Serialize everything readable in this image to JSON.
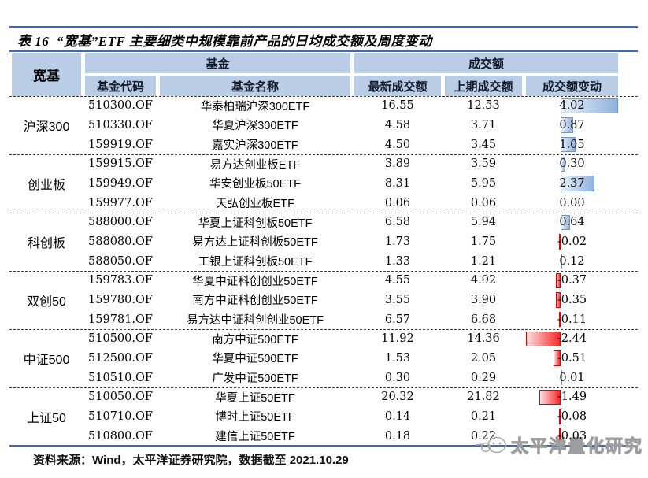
{
  "title": "表 16  “宽基”ETF 主要细类中规模靠前产品的日均成交额及周度变动",
  "table": {
    "category_header": "宽基",
    "group_headers": {
      "fund": "基金",
      "turnover": "成交额"
    },
    "columns": {
      "code": "基金代码",
      "name": "基金名称",
      "latest": "最新成交额",
      "prev": "上期成交额",
      "change": "成交额变动"
    },
    "bar_axis": {
      "min": -2.44,
      "max": 4.02
    },
    "groups": [
      {
        "category": "沪深300",
        "rows": [
          {
            "code": "510300.OF",
            "name": "华泰柏瑞沪深300ETF",
            "latest": "16.55",
            "prev": "12.53",
            "change": "4.02"
          },
          {
            "code": "510330.OF",
            "name": "华夏沪深300ETF",
            "latest": "4.58",
            "prev": "3.71",
            "change": "0.87"
          },
          {
            "code": "159919.OF",
            "name": "嘉实沪深300ETF",
            "latest": "4.50",
            "prev": "3.45",
            "change": "1.05"
          }
        ]
      },
      {
        "category": "创业板",
        "rows": [
          {
            "code": "159915.OF",
            "name": "易方达创业板ETF",
            "latest": "3.89",
            "prev": "3.59",
            "change": "0.30"
          },
          {
            "code": "159949.OF",
            "name": "华安创业板50ETF",
            "latest": "8.31",
            "prev": "5.95",
            "change": "2.37"
          },
          {
            "code": "159977.OF",
            "name": "天弘创业板ETF",
            "latest": "0.06",
            "prev": "0.06",
            "change": "0.00"
          }
        ]
      },
      {
        "category": "科创板",
        "rows": [
          {
            "code": "588000.OF",
            "name": "华夏上证科创板50ETF",
            "latest": "6.58",
            "prev": "5.94",
            "change": "0.64"
          },
          {
            "code": "588080.OF",
            "name": "易方达上证科创板50ETF",
            "latest": "1.73",
            "prev": "1.75",
            "change": "-0.02"
          },
          {
            "code": "588050.OF",
            "name": "工银上证科创板50ETF",
            "latest": "1.33",
            "prev": "1.21",
            "change": "0.12"
          }
        ]
      },
      {
        "category": "双创50",
        "rows": [
          {
            "code": "159783.OF",
            "name": "华夏中证科创创业50ETF",
            "latest": "4.55",
            "prev": "4.92",
            "change": "-0.37"
          },
          {
            "code": "159780.OF",
            "name": "南方中证科创创业50ETF",
            "latest": "3.55",
            "prev": "3.90",
            "change": "-0.35"
          },
          {
            "code": "159781.OF",
            "name": "易方达中证科创创业50ETF",
            "latest": "6.57",
            "prev": "6.68",
            "change": "-0.11"
          }
        ]
      },
      {
        "category": "中证500",
        "rows": [
          {
            "code": "510500.OF",
            "name": "南方中证500ETF",
            "latest": "11.92",
            "prev": "14.36",
            "change": "-2.44"
          },
          {
            "code": "512500.OF",
            "name": "华夏中证500ETF",
            "latest": "1.53",
            "prev": "2.05",
            "change": "-0.51"
          },
          {
            "code": "510510.OF",
            "name": "广发中证500ETF",
            "latest": "0.30",
            "prev": "0.29",
            "change": "0.01"
          }
        ]
      },
      {
        "category": "上证50",
        "rows": [
          {
            "code": "510050.OF",
            "name": "华夏上证50ETF",
            "latest": "20.32",
            "prev": "21.82",
            "change": "-1.49"
          },
          {
            "code": "510710.OF",
            "name": "博时上证50ETF",
            "latest": "0.14",
            "prev": "0.21",
            "change": "-0.08"
          },
          {
            "code": "510800.OF",
            "name": "建信上证50ETF",
            "latest": "0.18",
            "prev": "0.22",
            "change": "-0.03"
          }
        ]
      }
    ]
  },
  "footer": {
    "source_note": "资料来源：Wind，太平洋证券研究院，数据截至 2021.10.29"
  },
  "watermark": {
    "logo": "pacific-panda-logo",
    "text": "太平洋量化研究"
  },
  "colors": {
    "rule_blue": "#3a6ab8",
    "header_bg": "#b9cde6",
    "bar_pos_border": "#6f97c9",
    "bar_pos_fill": "#8fb2dd",
    "bar_neg_border": "#e80000",
    "bar_neg_fill": "#fa2828"
  }
}
